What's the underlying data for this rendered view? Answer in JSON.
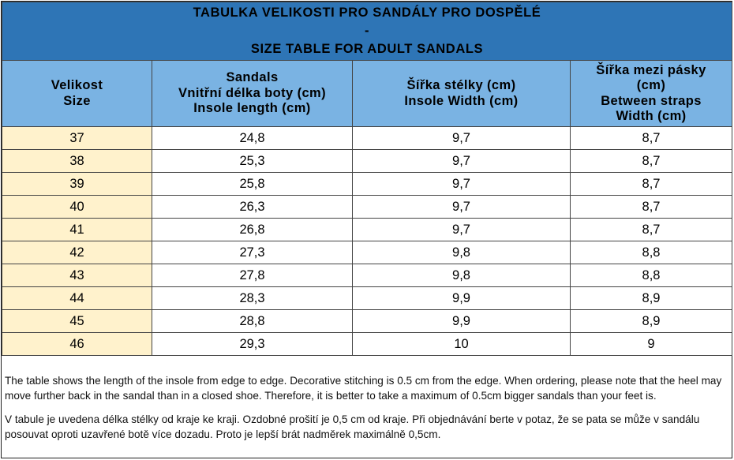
{
  "title": {
    "line1": "TABULKA VELIKOSTI PRO SANDÁLY PRO DOSPĚLÉ",
    "line2": "-",
    "line3": "SIZE TABLE FOR ADULT SANDALS"
  },
  "columns": [
    {
      "lines": [
        "Velikost",
        "Size"
      ]
    },
    {
      "lines": [
        "Sandals",
        "Vnitřní délka boty (cm)",
        "Insole length (cm)"
      ]
    },
    {
      "lines": [
        "Šířka stélky (cm)",
        "Insole Width (cm)"
      ]
    },
    {
      "lines": [
        "Šířka mezi pásky",
        "(cm)",
        "Between straps",
        "Width (cm)"
      ]
    }
  ],
  "rows": [
    [
      "37",
      "24,8",
      "9,7",
      "8,7"
    ],
    [
      "38",
      "25,3",
      "9,7",
      "8,7"
    ],
    [
      "39",
      "25,8",
      "9,7",
      "8,7"
    ],
    [
      "40",
      "26,3",
      "9,7",
      "8,7"
    ],
    [
      "41",
      "26,8",
      "9,7",
      "8,7"
    ],
    [
      "42",
      "27,3",
      "9,8",
      "8,8"
    ],
    [
      "43",
      "27,8",
      "9,8",
      "8,8"
    ],
    [
      "44",
      "28,3",
      "9,9",
      "8,9"
    ],
    [
      "45",
      "28,8",
      "9,9",
      "8,9"
    ],
    [
      "46",
      "29,3",
      "10",
      "9"
    ]
  ],
  "notes": {
    "english": "The table shows the length of the insole from edge to edge. Decorative stitching is 0.5 cm from the edge. When ordering, please note that the heel may move further back in the sandal than in a closed shoe. Therefore, it is better to take a maximum of 0.5cm bigger sandals than your feet is.",
    "czech": "V tabule je uvedena délka stélky od kraje ke kraji. Ozdobné prošití je 0,5 cm od kraje. Při objednávání berte v potaz, že se pata se může v sandálu posouvat oproti uzavřené botě více dozadu. Proto je lepší brát nadměrek maximálně 0,5cm."
  },
  "colors": {
    "title_bg": "#2e75b6",
    "header_bg": "#7ab3e3",
    "size_col_bg": "#fff2cc"
  }
}
